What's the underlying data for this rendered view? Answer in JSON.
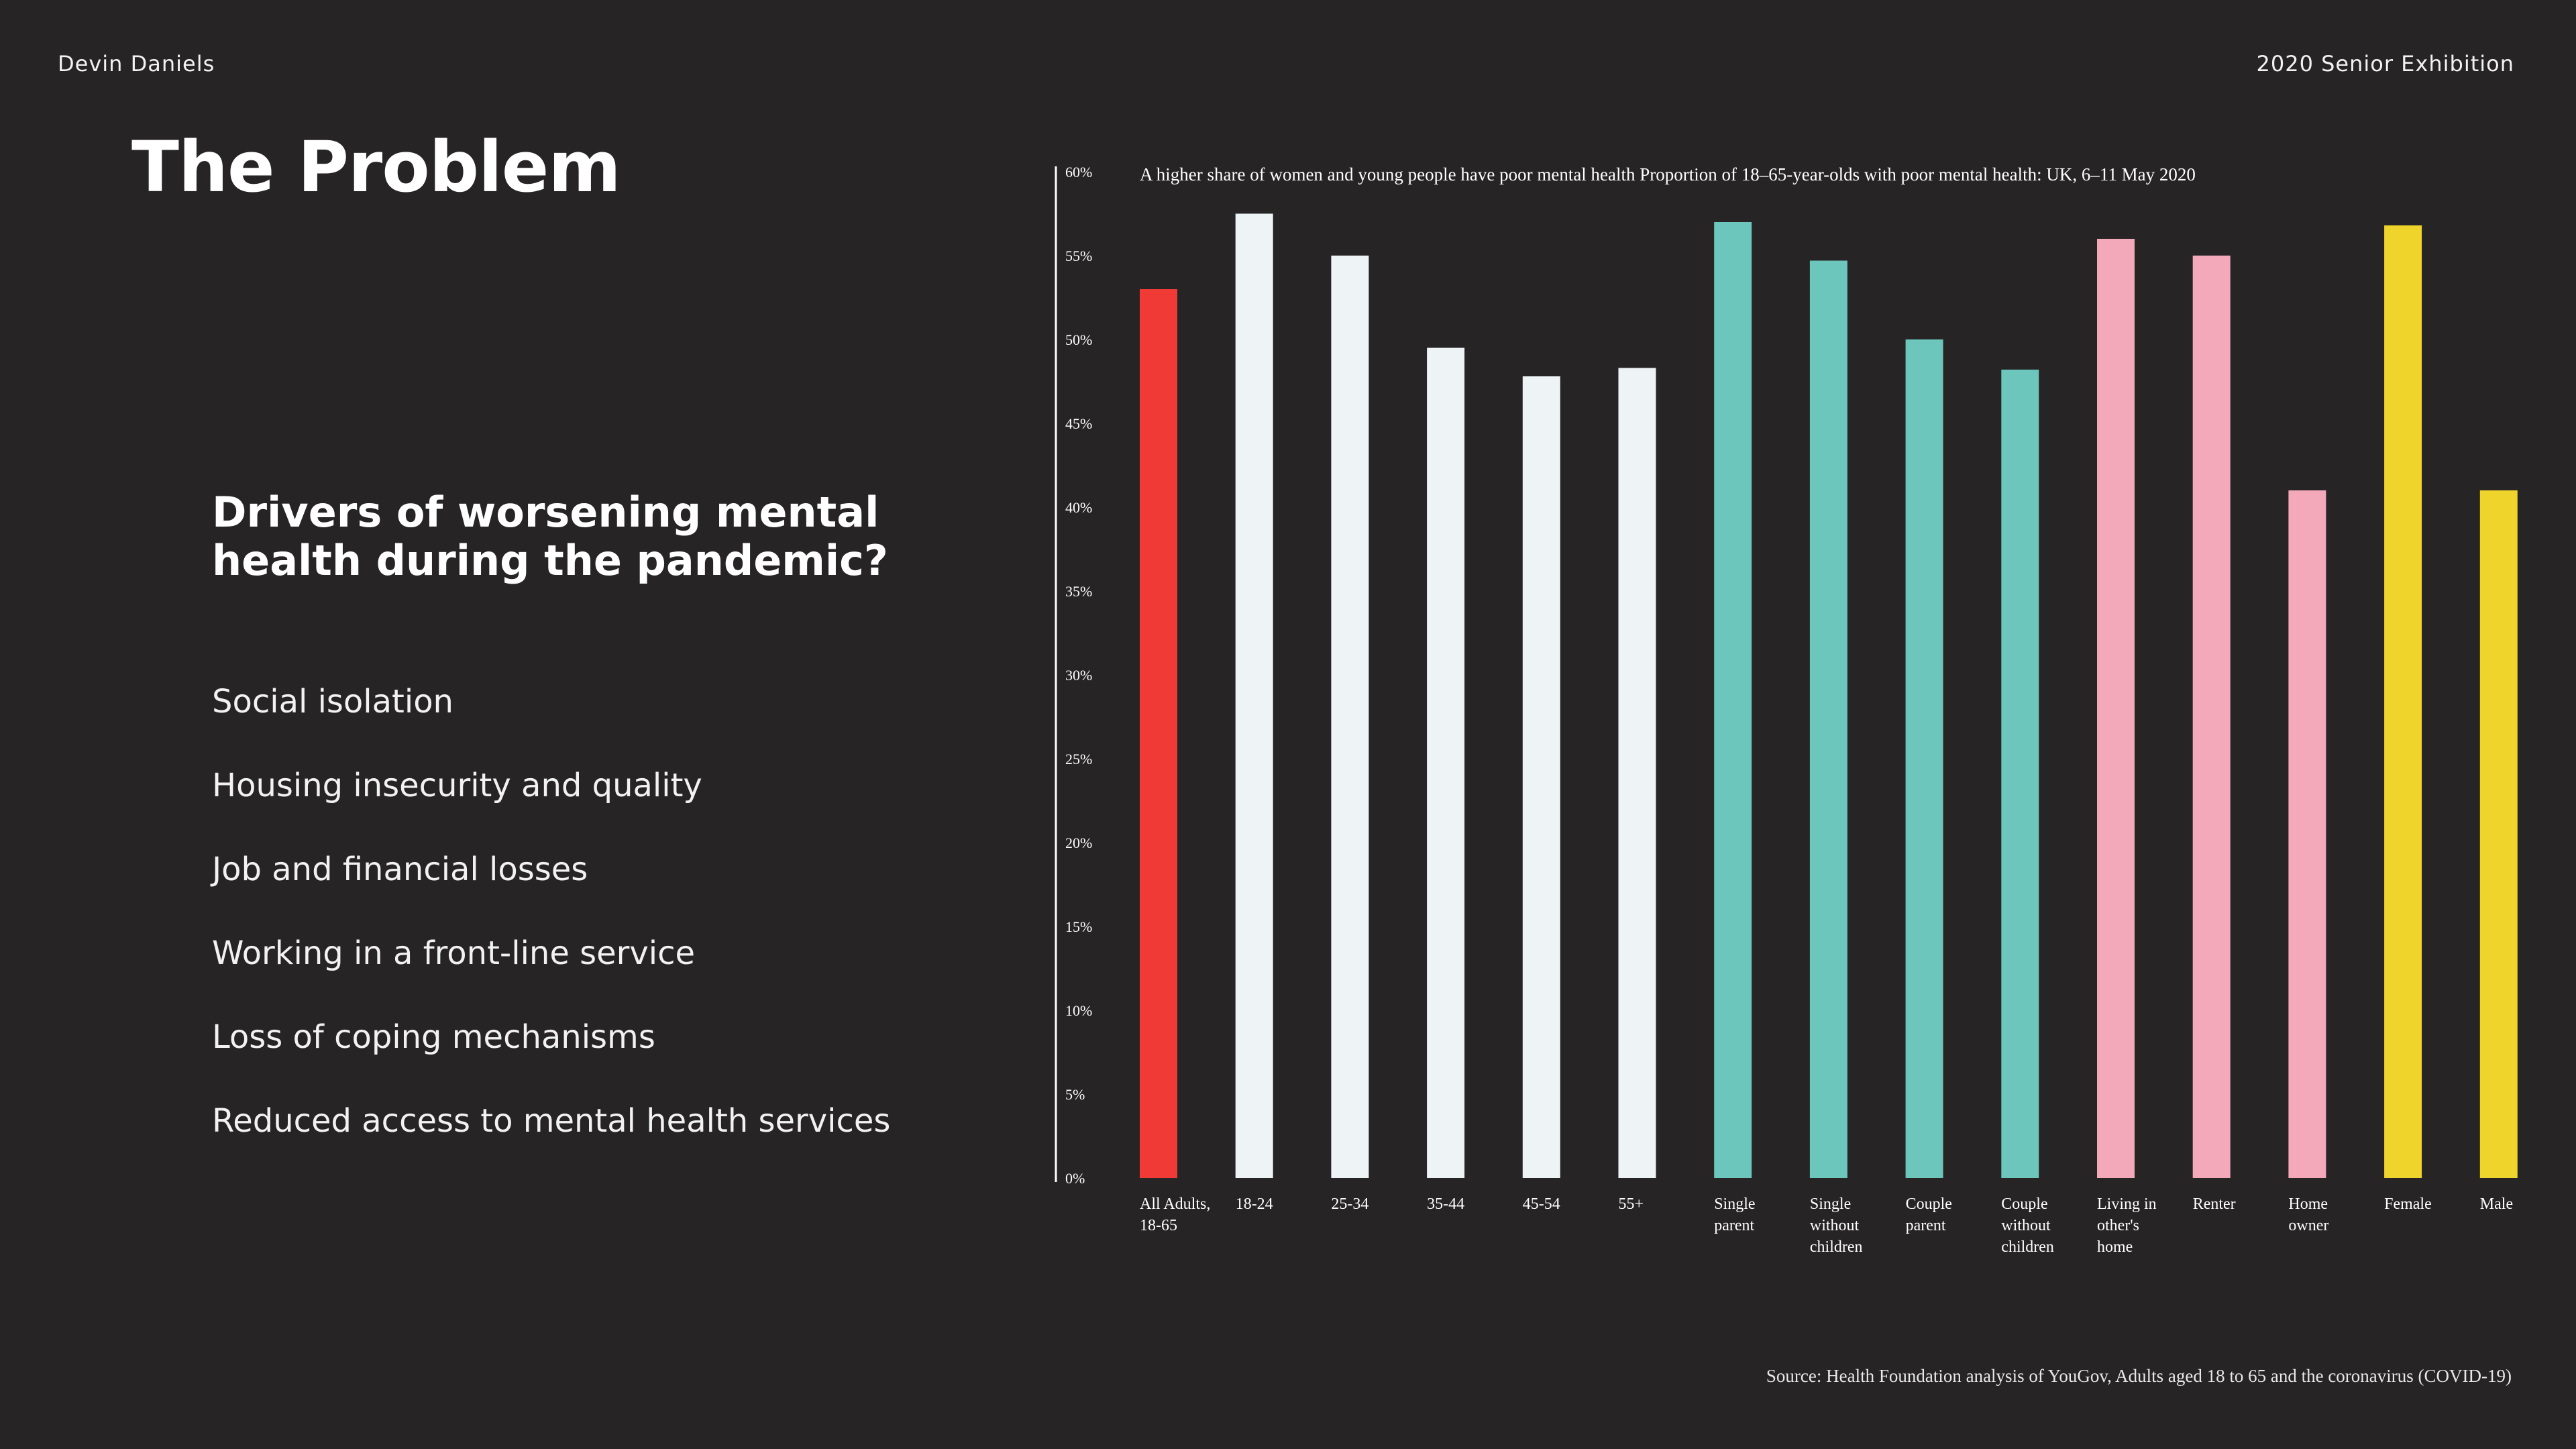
{
  "header": {
    "author": "Devin Daniels",
    "exhibition": "2020 Senior Exhibition"
  },
  "title": "The Problem",
  "subtitle": "Drivers of worsening mental health during the pandemic?",
  "drivers": [
    "Social isolation",
    "Housing insecurity and quality",
    "Job and financial losses",
    "Working in a front-line service",
    "Loss of coping mechanisms",
    "Reduced access to mental health services"
  ],
  "source": "Source: Health Foundation analysis of YouGov, Adults aged 18 to 65 and the coronavirus (COVID-19)",
  "chart_data": {
    "type": "bar",
    "title": "A higher share of women and young people have poor mental health Proportion of 18–65-year-olds with poor mental health: UK, 6–11 May 2020",
    "xlabel": "",
    "ylabel": "",
    "ylim": [
      0,
      60
    ],
    "yticks": [
      0,
      5,
      10,
      15,
      20,
      25,
      30,
      35,
      40,
      45,
      50,
      55,
      60
    ],
    "ytick_labels": [
      "0%",
      "5%",
      "10%",
      "15%",
      "20%",
      "25%",
      "30%",
      "35%",
      "40%",
      "45%",
      "50%",
      "55%",
      "60%"
    ],
    "grid": false,
    "legend": "none",
    "categories": [
      [
        "All Adults,",
        "18-65"
      ],
      [
        "18-24"
      ],
      [
        "25-34"
      ],
      [
        "35-44"
      ],
      [
        "45-54"
      ],
      [
        "55+"
      ],
      [
        "Single",
        "parent"
      ],
      [
        "Single",
        "without",
        "children"
      ],
      [
        "Couple",
        "parent"
      ],
      [
        "Couple",
        "without",
        "children"
      ],
      [
        "Living in",
        "other's",
        "home"
      ],
      [
        "Renter"
      ],
      [
        "Home",
        "owner"
      ],
      [
        "Female"
      ],
      [
        "Male"
      ]
    ],
    "values": [
      53,
      57.5,
      55,
      49.5,
      47.8,
      48.3,
      57,
      54.7,
      50,
      48.2,
      56,
      55,
      41,
      56.8,
      41
    ],
    "colors": [
      "#ef3a35",
      "#eef3f5",
      "#eef3f5",
      "#eef3f5",
      "#eef3f5",
      "#eef3f5",
      "#6cc6bc",
      "#6cc6bc",
      "#6cc6bc",
      "#6cc6bc",
      "#f4a9bb",
      "#f4a9bb",
      "#f4a9bb",
      "#efd42c",
      "#efd42c"
    ]
  }
}
